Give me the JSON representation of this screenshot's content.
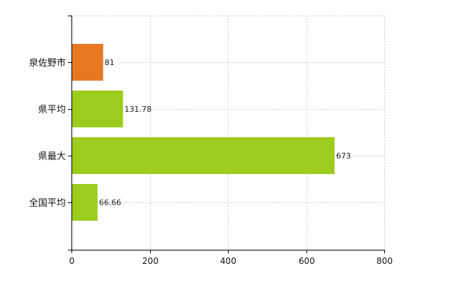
{
  "chart_data": {
    "type": "bar",
    "orientation": "horizontal",
    "categories": [
      "泉佐野市",
      "県平均",
      "県最大",
      "全国平均"
    ],
    "values": [
      81,
      131.78,
      673,
      66.66
    ],
    "value_labels": [
      "81",
      "131.78",
      "673",
      "66.66"
    ],
    "bar_colors": [
      "#e87722",
      "#9ccc1d",
      "#9ccc1d",
      "#9ccc1d"
    ],
    "xlim": [
      0,
      800
    ],
    "xticks": [
      0,
      200,
      400,
      600,
      800
    ],
    "xtick_labels": [
      "0",
      "200",
      "400",
      "600",
      "800"
    ],
    "grid": true,
    "legend": "none"
  },
  "colors": {
    "highlight": "#e87722",
    "default_bar": "#9ccc1d",
    "grid": "#cccccc",
    "axis": "#000000"
  }
}
